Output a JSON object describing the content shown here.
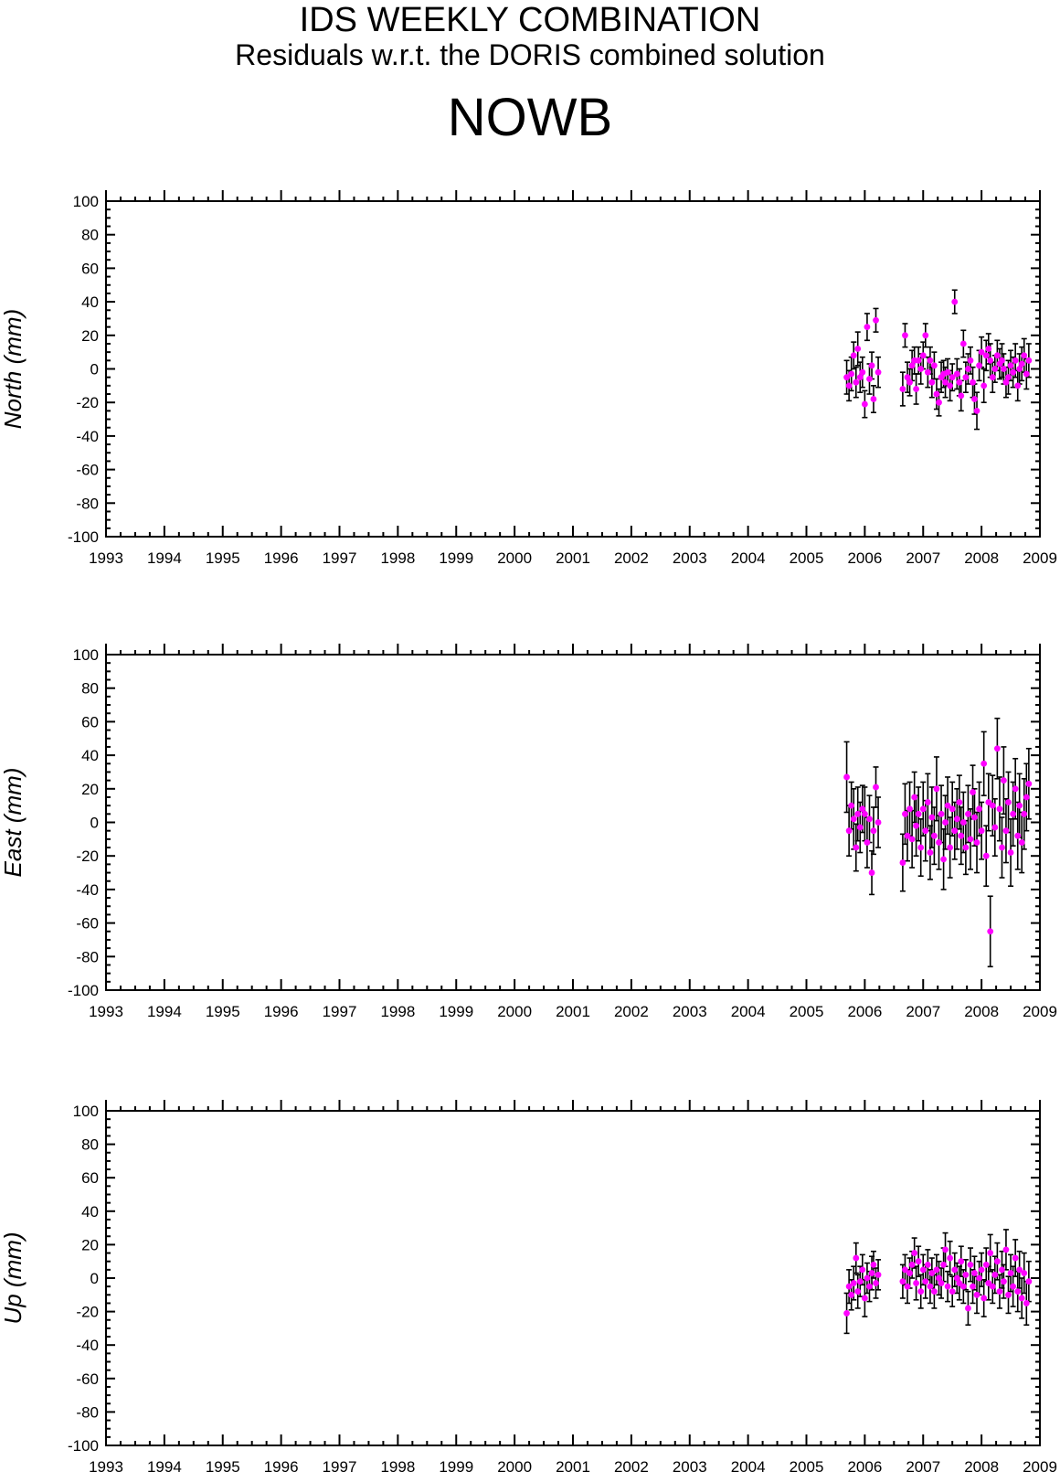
{
  "header": {
    "title": "IDS WEEKLY COMBINATION",
    "subtitle": "Residuals w.r.t. the DORIS combined solution",
    "station": "NOWB"
  },
  "colors": {
    "marker": "#ff00ff",
    "errorbar": "#000000",
    "axis": "#000000"
  },
  "chart_data": [
    {
      "type": "scatter",
      "ylabel": "North (mm)",
      "xlim": [
        1993,
        2009
      ],
      "ylim": [
        -100,
        100
      ],
      "xticks": [
        "1993",
        "1994",
        "1995",
        "1996",
        "1997",
        "1998",
        "1999",
        "2000",
        "2001",
        "2002",
        "2003",
        "2004",
        "2005",
        "2006",
        "2007",
        "2008",
        "2009"
      ],
      "yticks": [
        "100",
        "80",
        "60",
        "40",
        "20",
        "0",
        "-20",
        "-40",
        "-60",
        "-80",
        "-100"
      ],
      "series": [
        {
          "x": [
            2005.69,
            2005.73,
            2005.77,
            2005.81,
            2005.85,
            2005.88,
            2005.92,
            2005.96,
            2006.0,
            2006.04,
            2006.08,
            2006.12,
            2006.15,
            2006.19,
            2006.23,
            2006.65,
            2006.69,
            2006.73,
            2006.77,
            2006.81,
            2006.85,
            2006.88,
            2006.92,
            2006.96,
            2007.0,
            2007.04,
            2007.08,
            2007.12,
            2007.15,
            2007.19,
            2007.23,
            2007.27,
            2007.31,
            2007.35,
            2007.38,
            2007.42,
            2007.46,
            2007.5,
            2007.54,
            2007.58,
            2007.62,
            2007.65,
            2007.69,
            2007.73,
            2007.77,
            2007.81,
            2007.85,
            2007.88,
            2007.92,
            2007.96,
            2008.0,
            2008.04,
            2008.08,
            2008.12,
            2008.15,
            2008.19,
            2008.23,
            2008.27,
            2008.31,
            2008.35,
            2008.38,
            2008.42,
            2008.46,
            2008.5,
            2008.54,
            2008.58,
            2008.62,
            2008.65,
            2008.69,
            2008.73,
            2008.77,
            2008.81
          ],
          "y": [
            -5,
            -10,
            -3,
            8,
            -8,
            12,
            -5,
            -2,
            -21,
            25,
            -6,
            2,
            -18,
            29,
            -2,
            -12,
            20,
            -5,
            -8,
            2,
            5,
            -12,
            5,
            0,
            8,
            20,
            -2,
            5,
            -8,
            2,
            -15,
            -20,
            -5,
            -3,
            -8,
            -2,
            -10,
            -5,
            40,
            -3,
            -8,
            -16,
            15,
            -5,
            0,
            5,
            -8,
            -18,
            -25,
            2,
            10,
            -10,
            8,
            12,
            5,
            -5,
            0,
            8,
            3,
            5,
            0,
            -8,
            -5,
            2,
            -2,
            5,
            -10,
            0,
            3,
            8,
            -3,
            5
          ],
          "err": [
            10,
            9,
            10,
            8,
            9,
            10,
            9,
            9,
            8,
            8,
            9,
            8,
            8,
            7,
            9,
            10,
            7,
            9,
            8,
            9,
            8,
            9,
            8,
            9,
            8,
            7,
            9,
            8,
            9,
            8,
            9,
            8,
            9,
            8,
            9,
            8,
            9,
            8,
            7,
            9,
            8,
            9,
            8,
            9,
            9,
            8,
            9,
            9,
            11,
            9,
            9,
            10,
            9,
            9,
            10,
            9,
            8,
            9,
            9,
            10,
            9,
            9,
            10,
            9,
            9,
            10,
            9,
            9,
            10,
            10,
            9,
            10
          ]
        }
      ]
    },
    {
      "type": "scatter",
      "ylabel": "East (mm)",
      "xlim": [
        1993,
        2009
      ],
      "ylim": [
        -100,
        100
      ],
      "xticks": [
        "1993",
        "1994",
        "1995",
        "1996",
        "1997",
        "1998",
        "1999",
        "2000",
        "2001",
        "2002",
        "2003",
        "2004",
        "2005",
        "2006",
        "2007",
        "2008",
        "2009"
      ],
      "yticks": [
        "100",
        "80",
        "60",
        "40",
        "20",
        "0",
        "-20",
        "-40",
        "-60",
        "-80",
        "-100"
      ],
      "series": [
        {
          "x": [
            2005.69,
            2005.73,
            2005.77,
            2005.81,
            2005.85,
            2005.88,
            2005.92,
            2005.96,
            2006.0,
            2006.04,
            2006.08,
            2006.12,
            2006.15,
            2006.19,
            2006.23,
            2006.65,
            2006.69,
            2006.73,
            2006.77,
            2006.81,
            2006.85,
            2006.88,
            2006.92,
            2006.96,
            2007.0,
            2007.04,
            2007.08,
            2007.12,
            2007.15,
            2007.19,
            2007.23,
            2007.27,
            2007.31,
            2007.35,
            2007.38,
            2007.42,
            2007.46,
            2007.5,
            2007.54,
            2007.58,
            2007.62,
            2007.65,
            2007.69,
            2007.73,
            2007.77,
            2007.81,
            2007.85,
            2007.88,
            2007.92,
            2007.96,
            2008.0,
            2008.04,
            2008.08,
            2008.12,
            2008.15,
            2008.19,
            2008.23,
            2008.27,
            2008.31,
            2008.35,
            2008.38,
            2008.42,
            2008.46,
            2008.5,
            2008.54,
            2008.58,
            2008.62,
            2008.65,
            2008.69,
            2008.73,
            2008.77,
            2008.81
          ],
          "y": [
            27,
            -5,
            10,
            2,
            -15,
            5,
            -3,
            8,
            5,
            -12,
            2,
            -30,
            -5,
            21,
            0,
            -24,
            5,
            -8,
            8,
            -10,
            15,
            -2,
            5,
            -15,
            8,
            -5,
            12,
            -18,
            3,
            -8,
            20,
            -12,
            5,
            -22,
            0,
            10,
            -15,
            8,
            -5,
            2,
            12,
            -8,
            0,
            -15,
            5,
            -10,
            18,
            3,
            -12,
            8,
            -5,
            35,
            -20,
            12,
            -65,
            10,
            -3,
            44,
            8,
            -15,
            25,
            -5,
            12,
            -18,
            5,
            20,
            -8,
            10,
            -12,
            5,
            15,
            23
          ],
          "err": [
            21,
            15,
            14,
            18,
            14,
            16,
            15,
            14,
            16,
            15,
            14,
            13,
            14,
            12,
            15,
            17,
            18,
            15,
            16,
            17,
            15,
            18,
            16,
            17,
            16,
            18,
            17,
            16,
            18,
            17,
            19,
            16,
            17,
            18,
            16,
            17,
            18,
            16,
            17,
            18,
            16,
            17,
            18,
            16,
            17,
            18,
            16,
            17,
            18,
            16,
            17,
            19,
            18,
            17,
            21,
            18,
            17,
            18,
            19,
            18,
            20,
            19,
            18,
            20,
            19,
            18,
            20,
            19,
            18,
            21,
            20,
            21
          ]
        }
      ]
    },
    {
      "type": "scatter",
      "ylabel": "Up (mm)",
      "xlim": [
        1993,
        2009
      ],
      "ylim": [
        -100,
        100
      ],
      "xticks": [
        "1993",
        "1994",
        "1995",
        "1996",
        "1997",
        "1998",
        "1999",
        "2000",
        "2001",
        "2002",
        "2003",
        "2004",
        "2005",
        "2006",
        "2007",
        "2008",
        "2009"
      ],
      "yticks": [
        "100",
        "80",
        "60",
        "40",
        "20",
        "0",
        "-20",
        "-40",
        "-60",
        "-80",
        "-100"
      ],
      "series": [
        {
          "x": [
            2005.69,
            2005.73,
            2005.77,
            2005.81,
            2005.85,
            2005.88,
            2005.92,
            2005.96,
            2006.0,
            2006.04,
            2006.08,
            2006.12,
            2006.15,
            2006.19,
            2006.23,
            2006.65,
            2006.69,
            2006.73,
            2006.77,
            2006.81,
            2006.85,
            2006.88,
            2006.92,
            2006.96,
            2007.0,
            2007.04,
            2007.08,
            2007.12,
            2007.15,
            2007.19,
            2007.23,
            2007.27,
            2007.31,
            2007.35,
            2007.38,
            2007.42,
            2007.46,
            2007.5,
            2007.54,
            2007.58,
            2007.62,
            2007.65,
            2007.69,
            2007.73,
            2007.77,
            2007.81,
            2007.85,
            2007.88,
            2007.92,
            2007.96,
            2008.0,
            2008.04,
            2008.08,
            2008.12,
            2008.15,
            2008.19,
            2008.23,
            2008.27,
            2008.31,
            2008.35,
            2008.38,
            2008.42,
            2008.46,
            2008.5,
            2008.54,
            2008.58,
            2008.62,
            2008.65,
            2008.69,
            2008.73,
            2008.77,
            2008.81
          ],
          "y": [
            -21,
            -5,
            -10,
            -3,
            12,
            -8,
            -2,
            5,
            -12,
            0,
            -5,
            3,
            8,
            -3,
            2,
            -2,
            5,
            -5,
            3,
            8,
            15,
            -3,
            10,
            -8,
            5,
            -2,
            8,
            -5,
            3,
            -8,
            5,
            0,
            -3,
            8,
            17,
            -5,
            12,
            -8,
            5,
            0,
            -3,
            10,
            -5,
            2,
            -18,
            8,
            -5,
            3,
            -10,
            0,
            5,
            -12,
            8,
            -3,
            15,
            -5,
            2,
            10,
            -8,
            5,
            -2,
            17,
            -10,
            3,
            -5,
            12,
            -8,
            5,
            -12,
            3,
            -15,
            -2
          ],
          "err": [
            12,
            10,
            9,
            10,
            9,
            10,
            9,
            9,
            11,
            9,
            9,
            10,
            8,
            9,
            9,
            10,
            9,
            10,
            9,
            8,
            9,
            10,
            9,
            10,
            9,
            10,
            9,
            10,
            9,
            10,
            9,
            10,
            9,
            10,
            10,
            9,
            10,
            9,
            10,
            9,
            10,
            9,
            10,
            9,
            10,
            10,
            10,
            10,
            11,
            10,
            10,
            11,
            10,
            10,
            11,
            10,
            11,
            11,
            10,
            11,
            10,
            12,
            11,
            11,
            12,
            11,
            12,
            11,
            12,
            12,
            13,
            12
          ]
        }
      ]
    }
  ]
}
